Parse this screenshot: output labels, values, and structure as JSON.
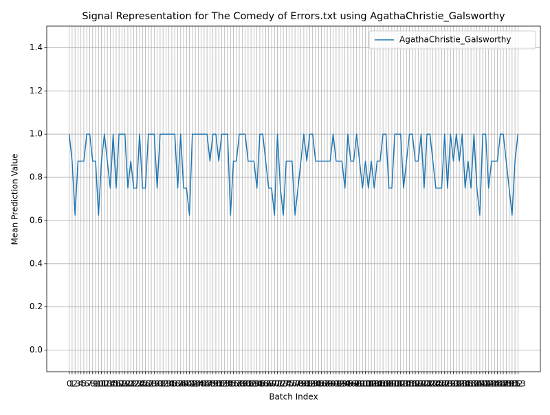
{
  "chart_data": {
    "type": "line",
    "title": "Signal Representation for The Comedy of Errors.txt using AgathaChristie_Galsworthy",
    "xlabel": "Batch Index",
    "ylabel": "Mean Prediction Value",
    "x": [
      0,
      1,
      2,
      3,
      4,
      5,
      6,
      7,
      8,
      9,
      10,
      11,
      12,
      13,
      14,
      15,
      16,
      17,
      18,
      19,
      20,
      21,
      22,
      23,
      24,
      25,
      26,
      27,
      28,
      29,
      30,
      31,
      32,
      33,
      34,
      35,
      36,
      37,
      38,
      39,
      40,
      41,
      42,
      43,
      44,
      45,
      46,
      47,
      48,
      49,
      50,
      51,
      52,
      53,
      54,
      55,
      56,
      57,
      58,
      59,
      60,
      61,
      62,
      63,
      64,
      65,
      66,
      67,
      68,
      69,
      70,
      71,
      72,
      73,
      74,
      75,
      76,
      77,
      78,
      79,
      80,
      81,
      82,
      83,
      84,
      85,
      86,
      87,
      88,
      89,
      90,
      91,
      92,
      93,
      94,
      95,
      96,
      97,
      98,
      99,
      100,
      101,
      102,
      103,
      104,
      105,
      106,
      107,
      108,
      109,
      110,
      111,
      112,
      113,
      114,
      115,
      116,
      117,
      118,
      119,
      120,
      121,
      122,
      123,
      124,
      125,
      126,
      127,
      128,
      129,
      130,
      131,
      132,
      133,
      134,
      135,
      136,
      137,
      138,
      139,
      140,
      141,
      142,
      143,
      144,
      145,
      146,
      147,
      148,
      149,
      150,
      151,
      152,
      153
    ],
    "series": [
      {
        "name": "AgathaChristie_Galsworthy",
        "color": "#1f77b4",
        "values": [
          1.0,
          0.875,
          0.625,
          0.875,
          0.875,
          0.875,
          1.0,
          1.0,
          0.875,
          0.875,
          0.625,
          0.875,
          1.0,
          0.875,
          0.75,
          1.0,
          0.75,
          1.0,
          1.0,
          1.0,
          0.75,
          0.875,
          0.75,
          0.75,
          1.0,
          0.75,
          0.75,
          1.0,
          1.0,
          1.0,
          0.75,
          1.0,
          1.0,
          1.0,
          1.0,
          1.0,
          1.0,
          0.75,
          1.0,
          0.75,
          0.75,
          0.625,
          1.0,
          1.0,
          1.0,
          1.0,
          1.0,
          1.0,
          0.875,
          1.0,
          1.0,
          0.875,
          1.0,
          1.0,
          1.0,
          0.625,
          0.875,
          0.875,
          1.0,
          1.0,
          1.0,
          0.875,
          0.875,
          0.875,
          0.75,
          1.0,
          1.0,
          0.875,
          0.75,
          0.75,
          0.625,
          1.0,
          0.75,
          0.625,
          0.875,
          0.875,
          0.875,
          0.625,
          0.75,
          0.875,
          1.0,
          0.875,
          1.0,
          1.0,
          0.875,
          0.875,
          0.875,
          0.875,
          0.875,
          0.875,
          1.0,
          0.875,
          0.875,
          0.875,
          0.75,
          1.0,
          0.875,
          0.875,
          1.0,
          0.875,
          0.75,
          0.875,
          0.75,
          0.875,
          0.75,
          0.875,
          0.875,
          1.0,
          1.0,
          0.75,
          0.75,
          1.0,
          1.0,
          1.0,
          0.75,
          0.875,
          1.0,
          1.0,
          0.875,
          0.875,
          1.0,
          0.75,
          1.0,
          1.0,
          0.875,
          0.75,
          0.75,
          0.75,
          1.0,
          0.75,
          1.0,
          0.875,
          1.0,
          0.875,
          1.0,
          0.75,
          0.875,
          0.75,
          1.0,
          0.75,
          0.625,
          1.0,
          1.0,
          0.75,
          0.875,
          0.875,
          0.875,
          1.0,
          1.0,
          0.875,
          0.75,
          0.625,
          0.875,
          1.0
        ]
      }
    ],
    "xlim": [
      -7.65,
      160.65
    ],
    "xticks": [
      0,
      1,
      2,
      3,
      4,
      5,
      6,
      7,
      8,
      9,
      10,
      11,
      12,
      13,
      14,
      15,
      16,
      17,
      18,
      19,
      20,
      21,
      22,
      23,
      24,
      25,
      26,
      27,
      28,
      29,
      30,
      31,
      32,
      33,
      34,
      35,
      36,
      37,
      38,
      39,
      40,
      41,
      42,
      43,
      44,
      45,
      46,
      47,
      48,
      49,
      50,
      51,
      52,
      53,
      54,
      55,
      56,
      57,
      58,
      59,
      60,
      61,
      62,
      63,
      64,
      65,
      66,
      67,
      68,
      69,
      70,
      71,
      72,
      73,
      74,
      75,
      76,
      77,
      78,
      79,
      80,
      81,
      82,
      83,
      84,
      85,
      86,
      87,
      88,
      89,
      90,
      91,
      92,
      93,
      94,
      95,
      96,
      97,
      98,
      99,
      100,
      101,
      102,
      103,
      104,
      105,
      106,
      107,
      108,
      109,
      110,
      111,
      112,
      113,
      114,
      115,
      116,
      117,
      118,
      119,
      120,
      121,
      122,
      123,
      124,
      125,
      126,
      127,
      128,
      129,
      130,
      131,
      132,
      133,
      134,
      135,
      136,
      137,
      138,
      139,
      140,
      141,
      142,
      143,
      144,
      145,
      146,
      147,
      148,
      149,
      150,
      151,
      152,
      153
    ],
    "ylim": [
      -0.1,
      1.5
    ],
    "yticks": [
      {
        "value": 0,
        "label": "0.0"
      },
      0.2,
      0.4,
      0.6,
      0.8,
      {
        "value": 1,
        "label": "1.0"
      },
      1.2,
      1.4
    ],
    "grid": true,
    "legend": "upper right"
  }
}
